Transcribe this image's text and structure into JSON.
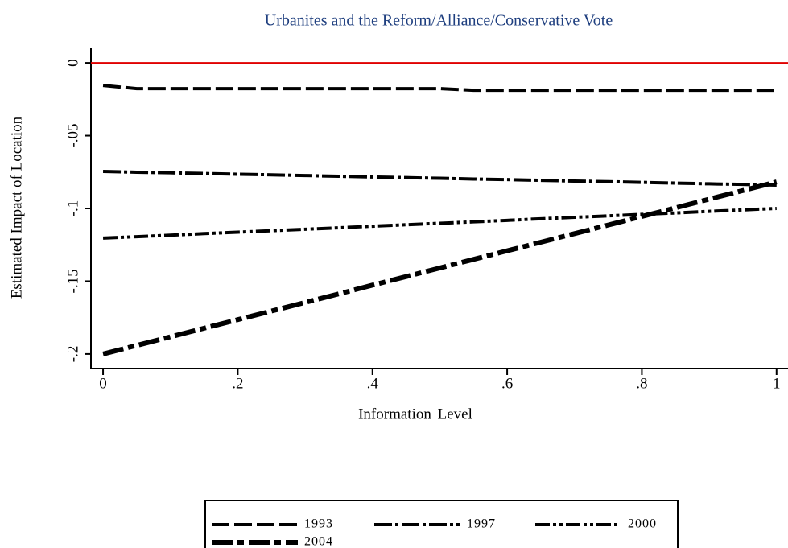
{
  "chart_data": {
    "type": "line",
    "title": "Urbanites and the Reform/Alliance/Conservative Vote",
    "xlabel": "Information Level",
    "ylabel": "Estimated Impact of Location",
    "x": [
      0,
      0.05,
      0.1,
      0.15,
      0.2,
      0.25,
      0.3,
      0.35,
      0.4,
      0.45,
      0.5,
      0.55,
      0.6,
      0.65,
      0.7,
      0.75,
      0.8,
      0.85,
      0.9,
      0.95,
      1
    ],
    "series": [
      {
        "name": "1993",
        "color": "#000000",
        "dash": "22 6",
        "width": 4,
        "values": [
          -0.0155,
          -0.0177,
          -0.0177,
          -0.0177,
          -0.0177,
          -0.0177,
          -0.0177,
          -0.0177,
          -0.0177,
          -0.0177,
          -0.0177,
          -0.0188,
          -0.0188,
          -0.0188,
          -0.0188,
          -0.0188,
          -0.0188,
          -0.0188,
          -0.0188,
          -0.0188,
          -0.0188
        ]
      },
      {
        "name": "1997",
        "color": "#000000",
        "dash": "22 4 4 4",
        "width": 4,
        "values": [
          -0.0746,
          -0.0751,
          -0.0755,
          -0.076,
          -0.0765,
          -0.0769,
          -0.0774,
          -0.0779,
          -0.0784,
          -0.0788,
          -0.0793,
          -0.0798,
          -0.0802,
          -0.0807,
          -0.0812,
          -0.0816,
          -0.0821,
          -0.0826,
          -0.0831,
          -0.0835,
          -0.084
        ]
      },
      {
        "name": "2000",
        "color": "#000000",
        "dash": "18 4 4 4 4 4",
        "width": 4,
        "values": [
          -0.1204,
          -0.1194,
          -0.1184,
          -0.1173,
          -0.1163,
          -0.1153,
          -0.1143,
          -0.1133,
          -0.1122,
          -0.1112,
          -0.1102,
          -0.1092,
          -0.1082,
          -0.1071,
          -0.1061,
          -0.1051,
          -0.1041,
          -0.1031,
          -0.102,
          -0.101,
          -0.1
        ]
      },
      {
        "name": "2004",
        "color": "#000000",
        "dash": "26 6 8 6",
        "width": 6,
        "values": [
          -0.2,
          -0.1941,
          -0.1882,
          -0.1823,
          -0.1764,
          -0.1705,
          -0.1646,
          -0.1587,
          -0.1527,
          -0.1468,
          -0.1409,
          -0.135,
          -0.1291,
          -0.1232,
          -0.1173,
          -0.1114,
          -0.1055,
          -0.0996,
          -0.0936,
          -0.0877,
          -0.0818
        ]
      }
    ],
    "xlim": [
      -0.018,
      1.017
    ],
    "ylim": [
      -0.21,
      0.01
    ],
    "xticks": [
      0,
      {
        "value": 0.2,
        "label": ".2"
      },
      {
        "value": 0.4,
        "label": ".4"
      },
      {
        "value": 0.6,
        "label": ".6"
      },
      {
        "value": 0.8,
        "label": ".8"
      },
      1
    ],
    "yticks": [
      0,
      {
        "value": -0.05,
        "label": "-.05"
      },
      {
        "value": -0.1,
        "label": "-.1"
      },
      {
        "value": -0.15,
        "label": "-.15"
      },
      {
        "value": -0.2,
        "label": "-.2"
      }
    ],
    "reference_line": {
      "value": 0,
      "color": "#e00000"
    },
    "grid": false,
    "legend": "bottom"
  }
}
